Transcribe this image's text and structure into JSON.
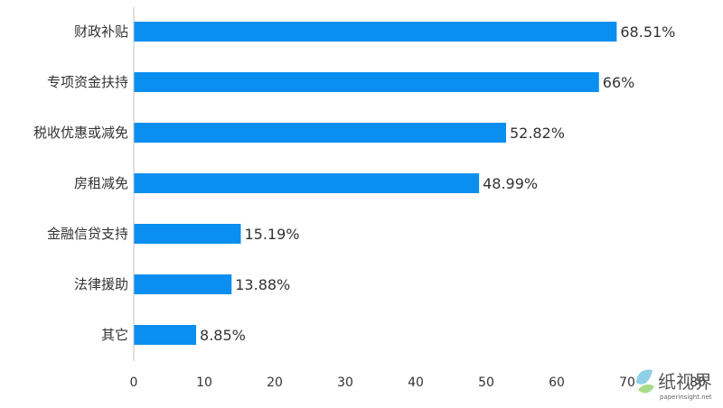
{
  "chart_data": {
    "type": "bar",
    "orientation": "horizontal",
    "categories": [
      "财政补贴",
      "专项资金扶持",
      "税收优惠或减免",
      "房租减免",
      "金融信贷支持",
      "法律援助",
      "其它"
    ],
    "values": [
      68.51,
      66,
      52.82,
      48.99,
      15.19,
      13.88,
      8.85
    ],
    "value_labels": [
      "68.51%",
      "66%",
      "52.82%",
      "48.99%",
      "15.19%",
      "13.88%",
      "8.85%"
    ],
    "xlim": [
      0,
      80
    ],
    "xticks": [
      0,
      10,
      20,
      30,
      40,
      50,
      60,
      70,
      80
    ],
    "bar_color": "#0a8ff0",
    "grid": false
  },
  "watermark": {
    "text": "纸视界",
    "url": "paperinsight.net"
  }
}
